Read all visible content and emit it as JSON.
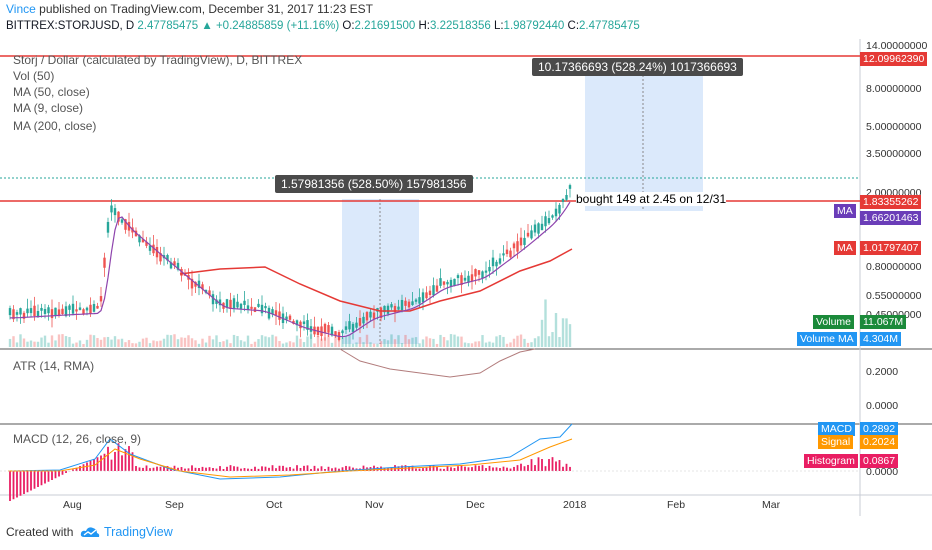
{
  "header": {
    "user": "Vince",
    "published_text": "published on TradingView.com, December 31, 2017 11:23 EST"
  },
  "ohlc": {
    "symbol": "BITTREX:STORJUSD, D",
    "last": "2.47785475",
    "change": "▲ +0.24885859 (+11.16%)",
    "o_label": "O:",
    "o": "2.21691500",
    "h_label": "H:",
    "h": "3.22518356",
    "l_label": "L:",
    "l": "1.98792440",
    "c_label": "C:",
    "c": "2.47785475"
  },
  "legend": {
    "title": "Storj / Dollar (calculated by TradingView), D, BITTREX",
    "vol": "Vol (50)",
    "ma50": "MA (50, close)",
    "ma9": "MA (9, close)",
    "ma200": "MA (200, close)"
  },
  "price_axis": [
    "14.00000000",
    "8.00000000",
    "5.00000000",
    "3.50000000",
    "2.00000000",
    "0.80000000",
    "0.55000000",
    "0.45000000"
  ],
  "price_tags": {
    "resistance": "12.09962390",
    "price_line": "1.83355262",
    "ma_label": "MA",
    "ma_purple": "1.66201463",
    "ma_red": "1.01797407",
    "volume_label": "Volume",
    "volume": "11.067M",
    "volume_ma_label": "Volume MA",
    "volume_ma": "4.304M"
  },
  "measures": {
    "upper": "10.17366693 (528.24%) 1017366693",
    "lower": "1.57981356 (528.50%) 157981356"
  },
  "annotation": "bought 149 at 2.45 on 12/31",
  "atr": {
    "title": "ATR (14, RMA)",
    "axis": [
      "0.2000",
      "0.0000"
    ]
  },
  "macd": {
    "title": "MACD (12, 26, close, 9)",
    "axis": [
      "0.0000"
    ],
    "macd_label": "MACD",
    "macd": "0.2892",
    "signal_label": "Signal",
    "signal": "0.2024",
    "hist_label": "Histogram",
    "hist": "0.0867"
  },
  "time_axis": [
    "Aug",
    "Sep",
    "Oct",
    "Nov",
    "Dec",
    "2018",
    "Feb",
    "Mar"
  ],
  "footer": {
    "created": "Created with",
    "brand": "TradingView"
  },
  "colors": {
    "up": "#26a69a",
    "down": "#ef5350",
    "ma_red": "#e53935",
    "ma_purple": "#8e44ad",
    "measure_fill": "#dbe9fb",
    "resistance": "#e53935"
  },
  "chart_data": {
    "type": "candlestick",
    "title": "Storj / Dollar (calculated by TradingView), D, BITTREX",
    "symbol": "BITTREX:STORJUSD",
    "interval": "D",
    "x_range": [
      "2017-07-20",
      "2018-03-31"
    ],
    "y_scale": "log",
    "y_ticks": [
      14.0,
      8.0,
      5.0,
      3.5,
      2.0,
      0.8,
      0.55,
      0.45
    ],
    "last_close": 2.47785475,
    "horizontal_lines": [
      12.0996239,
      1.83355262
    ],
    "ma_purple_last": 1.66201463,
    "ma_red_last": 1.01797407,
    "measures": [
      {
        "text": "10.17366693 (528.24%) 1017366693",
        "from": "2017-12-31",
        "to": "2018-02-05"
      },
      {
        "text": "1.57981356 (528.50%) 157981356",
        "from": "2017-10-20",
        "to": "2017-11-12"
      }
    ],
    "volume": {
      "last": "11.067M",
      "ma": "4.304M"
    },
    "macd": {
      "macd": 0.2892,
      "signal": 0.2024,
      "histogram": 0.0867
    }
  }
}
